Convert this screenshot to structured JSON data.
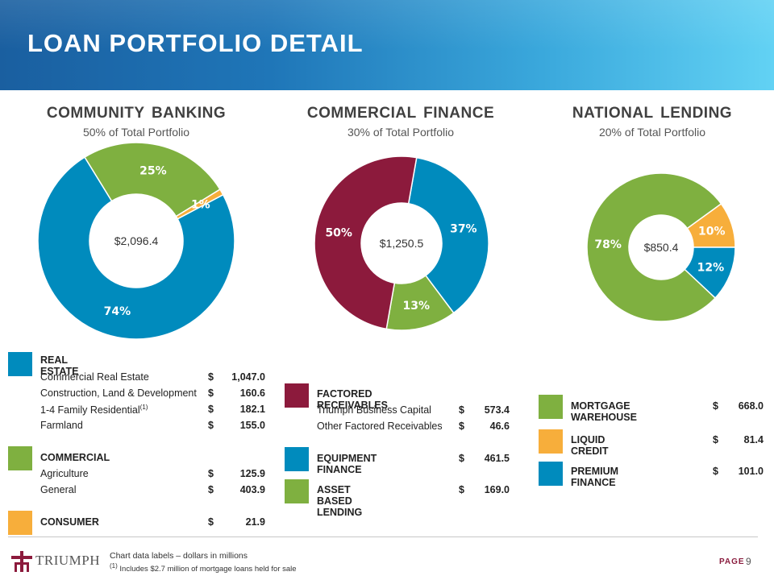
{
  "header": {
    "title": "LOAN PORTFOLIO DETAIL"
  },
  "colors": {
    "blue": "#008bbd",
    "green": "#7fb040",
    "orange": "#f7ae3b",
    "maroon": "#8c1a3c"
  },
  "sections": [
    {
      "title": "COMMUNITY  BANKING",
      "subtitle": "50% of Total Portfolio"
    },
    {
      "title": "COMMERCIAL  FINANCE",
      "subtitle": "30% of Total Portfolio"
    },
    {
      "title": "NATIONAL  LENDING",
      "subtitle": "20% of Total Portfolio"
    }
  ],
  "chart_data": [
    {
      "type": "pie",
      "title": "Community Banking",
      "center_label": "$2,096.4",
      "slices": [
        {
          "name": "Real Estate",
          "value": 74,
          "label": "74%",
          "color": "#008bbd"
        },
        {
          "name": "Commercial",
          "value": 25,
          "label": "25%",
          "color": "#7fb040"
        },
        {
          "name": "Consumer",
          "value": 1,
          "label": "1%",
          "color": "#f7ae3b"
        }
      ]
    },
    {
      "type": "pie",
      "title": "Commercial Finance",
      "center_label": "$1,250.5",
      "slices": [
        {
          "name": "Equipment Finance",
          "value": 37,
          "label": "37%",
          "color": "#008bbd"
        },
        {
          "name": "Asset Based Lending",
          "value": 13,
          "label": "13%",
          "color": "#7fb040"
        },
        {
          "name": "Factored Receivables",
          "value": 50,
          "label": "50%",
          "color": "#8c1a3c"
        }
      ]
    },
    {
      "type": "pie",
      "title": "National Lending",
      "center_label": "$850.4",
      "slices": [
        {
          "name": "Liquid Credit",
          "value": 10,
          "label": "10%",
          "color": "#f7ae3b"
        },
        {
          "name": "Premium Finance",
          "value": 12,
          "label": "12%",
          "color": "#008bbd"
        },
        {
          "name": "Mortgage Warehouse",
          "value": 78,
          "label": "78%",
          "color": "#7fb040"
        }
      ]
    }
  ],
  "legend_community": {
    "real_estate": {
      "title": "REAL ESTATE",
      "items": [
        {
          "label": "Commercial Real Estate",
          "currency": "$",
          "amount": "1,047.0"
        },
        {
          "label": "Construction, Land & Development",
          "currency": "$",
          "amount": "160.6"
        },
        {
          "label": "1-4 Family Residential",
          "footnote": "(1)",
          "currency": "$",
          "amount": "182.1"
        },
        {
          "label": "Farmland",
          "currency": "$",
          "amount": "155.0"
        }
      ]
    },
    "commercial": {
      "title": "COMMERCIAL",
      "items": [
        {
          "label": "Agriculture",
          "currency": "$",
          "amount": "125.9"
        },
        {
          "label": "General",
          "currency": "$",
          "amount": "403.9"
        }
      ]
    },
    "consumer": {
      "title": "CONSUMER",
      "currency": "$",
      "amount": "21.9"
    }
  },
  "legend_commercial": {
    "factored": {
      "title": "FACTORED RECEIVABLES",
      "items": [
        {
          "label": "Triumph Business Capital",
          "currency": "$",
          "amount": "573.4"
        },
        {
          "label": "Other Factored Receivables",
          "currency": "$",
          "amount": "46.6"
        }
      ]
    },
    "equipment": {
      "title": "EQUIPMENT FINANCE",
      "currency": "$",
      "amount": "461.5"
    },
    "abl": {
      "title": "ASSET BASED LENDING",
      "currency": "$",
      "amount": "169.0"
    }
  },
  "legend_national": {
    "mortgage": {
      "title": "MORTGAGE WAREHOUSE",
      "currency": "$",
      "amount": "668.0"
    },
    "liquid": {
      "title": "LIQUID CREDIT",
      "currency": "$",
      "amount": "81.4"
    },
    "premium": {
      "title": "PREMIUM FINANCE",
      "currency": "$",
      "amount": "101.0"
    }
  },
  "footer": {
    "logo_text": "TRIUMPH",
    "note_main": "Chart data labels – dollars in millions",
    "note_footnote_marker": "(1)",
    "note_footnote": " Includes $2.7 million  of mortgage loans held for sale",
    "page_label": "PAGE",
    "page_number": "9"
  }
}
